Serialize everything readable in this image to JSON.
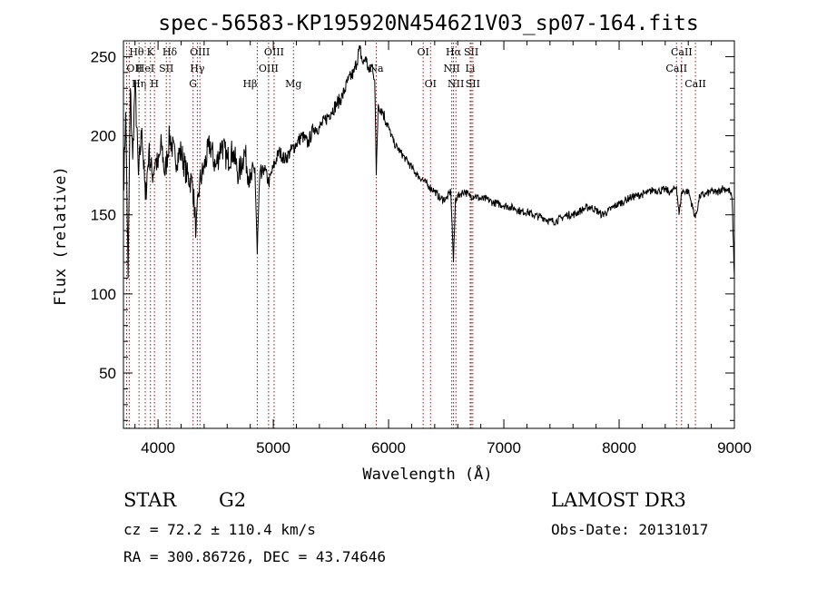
{
  "chart_data": {
    "type": "line",
    "title": "spec-56583-KP195920N454621V03_sp07-164.fits",
    "xlabel": "Wavelength (Å)",
    "ylabel": "Flux (relative)",
    "xlim": [
      3700,
      9000
    ],
    "ylim": [
      15,
      260
    ],
    "xticks": [
      4000,
      5000,
      6000,
      7000,
      8000,
      9000
    ],
    "yticks": [
      50,
      100,
      150,
      200,
      250
    ],
    "series": [
      {
        "name": "spectrum",
        "x": [
          3700,
          3720,
          3740,
          3760,
          3780,
          3800,
          3830,
          3860,
          3890,
          3920,
          3950,
          3980,
          4000,
          4030,
          4060,
          4100,
          4150,
          4200,
          4250,
          4300,
          4330,
          4360,
          4400,
          4450,
          4500,
          4550,
          4600,
          4650,
          4700,
          4750,
          4800,
          4840,
          4861,
          4880,
          4920,
          4960,
          5000,
          5050,
          5100,
          5150,
          5200,
          5250,
          5300,
          5350,
          5400,
          5450,
          5500,
          5550,
          5600,
          5650,
          5700,
          5750,
          5780,
          5800,
          5830,
          5860,
          5880,
          5893,
          5910,
          5950,
          6000,
          6050,
          6100,
          6150,
          6200,
          6250,
          6300,
          6350,
          6400,
          6450,
          6500,
          6540,
          6563,
          6580,
          6620,
          6660,
          6700,
          6750,
          6800,
          6850,
          6900,
          6950,
          7000,
          7050,
          7100,
          7150,
          7200,
          7250,
          7300,
          7350,
          7400,
          7450,
          7500,
          7550,
          7600,
          7650,
          7700,
          7750,
          7800,
          7850,
          7900,
          7950,
          8000,
          8050,
          8100,
          8150,
          8200,
          8250,
          8300,
          8350,
          8400,
          8450,
          8498,
          8520,
          8542,
          8560,
          8600,
          8662,
          8700,
          8750,
          8800,
          8850,
          8900,
          8930,
          8960,
          8980,
          9000
        ],
        "y": [
          165,
          215,
          110,
          230,
          185,
          235,
          175,
          205,
          160,
          190,
          175,
          185,
          180,
          195,
          175,
          200,
          185,
          190,
          175,
          170,
          140,
          170,
          180,
          195,
          180,
          195,
          185,
          190,
          175,
          190,
          170,
          180,
          125,
          170,
          180,
          170,
          180,
          190,
          185,
          190,
          195,
          200,
          195,
          205,
          205,
          210,
          215,
          220,
          225,
          235,
          240,
          255,
          245,
          250,
          240,
          245,
          235,
          175,
          220,
          215,
          205,
          195,
          190,
          185,
          180,
          175,
          172,
          168,
          165,
          160,
          160,
          165,
          120,
          160,
          163,
          165,
          162,
          162,
          160,
          160,
          158,
          157,
          156,
          155,
          154,
          152,
          152,
          150,
          149,
          148,
          146,
          146,
          148,
          150,
          150,
          152,
          154,
          155,
          153,
          150,
          152,
          155,
          157,
          159,
          161,
          162,
          163,
          164,
          166,
          165,
          166,
          164,
          168,
          150,
          164,
          165,
          165,
          148,
          162,
          163,
          165,
          164,
          167,
          166,
          165,
          160,
          110
        ]
      }
    ],
    "lines": [
      {
        "label": "OII",
        "x": 3727,
        "row": 1,
        "align": "start"
      },
      {
        "label": "Hθ",
        "x": 3750,
        "row": 0,
        "align": "start"
      },
      {
        "label": "Hη",
        "x": 3835,
        "row": 2,
        "align": "middle"
      },
      {
        "label": "HeI",
        "x": 3889,
        "row": 1,
        "align": "middle"
      },
      {
        "label": "K",
        "x": 3934,
        "row": 0,
        "align": "middle"
      },
      {
        "label": "H",
        "x": 3969,
        "row": 2,
        "align": "middle"
      },
      {
        "label": "SII",
        "x": 4072,
        "row": 1,
        "align": "middle"
      },
      {
        "label": "Hδ",
        "x": 4102,
        "row": 0,
        "align": "middle"
      },
      {
        "label": "G",
        "x": 4304,
        "row": 2,
        "align": "middle"
      },
      {
        "label": "Hγ",
        "x": 4341,
        "row": 1,
        "align": "middle"
      },
      {
        "label": "OIII",
        "x": 4363,
        "row": 0,
        "align": "middle"
      },
      {
        "label": "Hβ",
        "x": 4861,
        "row": 2,
        "align": "end"
      },
      {
        "label": "OIII",
        "x": 4959,
        "row": 1,
        "align": "middle"
      },
      {
        "label": "OIII",
        "x": 5007,
        "row": 0,
        "align": "middle"
      },
      {
        "label": "Mg",
        "x": 5175,
        "row": 2,
        "align": "middle"
      },
      {
        "label": "Na",
        "x": 5893,
        "row": 1,
        "align": "middle"
      },
      {
        "label": "OI",
        "x": 6300,
        "row": 0,
        "align": "middle"
      },
      {
        "label": "OI",
        "x": 6364,
        "row": 2,
        "align": "middle"
      },
      {
        "label": "NII",
        "x": 6548,
        "row": 1,
        "align": "middle"
      },
      {
        "label": "Hα",
        "x": 6563,
        "row": 0,
        "align": "middle"
      },
      {
        "label": "NII",
        "x": 6584,
        "row": 2,
        "align": "middle"
      },
      {
        "label": "Li",
        "x": 6708,
        "row": 1,
        "align": "middle"
      },
      {
        "label": "SII",
        "x": 6717,
        "row": 0,
        "align": "middle"
      },
      {
        "label": "SII",
        "x": 6731,
        "row": 2,
        "align": "middle"
      },
      {
        "label": "CaII",
        "x": 8498,
        "row": 1,
        "align": "middle"
      },
      {
        "label": "CaII",
        "x": 8542,
        "row": 0,
        "align": "middle"
      },
      {
        "label": "CaII",
        "x": 8662,
        "row": 2,
        "align": "middle"
      }
    ]
  },
  "info": {
    "class": "STAR",
    "subclass": "G2",
    "survey": "LAMOST DR3",
    "cz": "cz = 72.2 ± 110.4 km/s",
    "obsdate": "Obs-Date: 20131017",
    "radec": "RA = 300.86726, DEC =  43.74646"
  },
  "colors": {
    "line_marker": "#c00000",
    "spectrum": "#000000"
  }
}
